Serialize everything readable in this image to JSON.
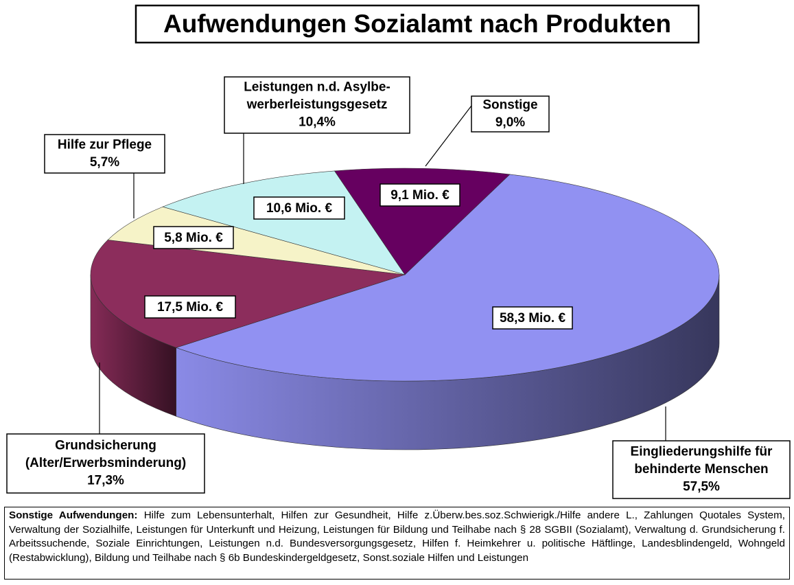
{
  "chart_data": {
    "type": "pie3d",
    "title": "Aufwendungen Sozialamt nach Produkten",
    "categories": [
      [
        "Eingliederungshilfe für",
        "behinderte Menschen"
      ],
      [
        "Grundsicherung",
        "(Alter/Erwerbsminderung)"
      ],
      [
        "Hilfe zur Pflege"
      ],
      [
        "Leistungen n.d. Asylbe-",
        "werberleistungsgesetz"
      ],
      [
        "Sonstige"
      ]
    ],
    "values": [
      57.5,
      17.3,
      5.7,
      10.4,
      9.0
    ],
    "value_labels": [
      "57,5%",
      "17,3%",
      "5,7%",
      "10,4%",
      "9,0%"
    ],
    "amounts": [
      58.3,
      17.5,
      5.8,
      10.6,
      9.1
    ],
    "amount_labels": [
      "58,3 Mio. €",
      "17,5 Mio. €",
      "5,8 Mio. €",
      "10,6 Mio. €",
      "9,1 Mio. €"
    ],
    "colors": [
      "#9191f2",
      "#8c2d5c",
      "#f6f3c8",
      "#c4f2f2",
      "#660060"
    ],
    "note_label": "Sonstige Aufwendungen:",
    "note": "Hilfe zum Lebensunterhalt, Hilfen zur Gesundheit, Hilfe z.Überw.bes.soz.Schwierigk./Hilfe andere L., Zahlungen Quotales System, Verwaltung der Sozialhilfe, Leistungen für Unterkunft und Heizung, Leistungen für Bildung und Teilhabe nach § 28 SGBII (Sozialamt), Verwaltung d. Grundsicherung f. Arbeitssuchende, Soziale Einrichtungen, Leistungen n.d. Bundesversorgungsgesetz, Hilfen f. Heimkehrer u. politische Häftlinge, Landesblindengeld, Wohngeld (Restabwicklung), Bildung und Teilhabe nach § 6b Bundeskindergeldgesetz, Sonst.soziale Hilfen und Leistungen"
  }
}
